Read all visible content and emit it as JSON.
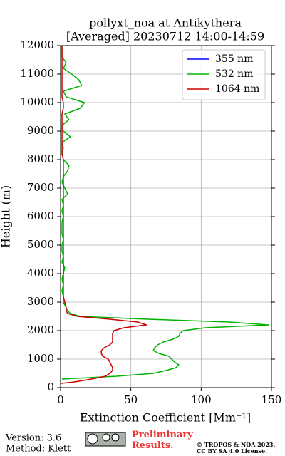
{
  "chart_data": {
    "type": "line",
    "title": "pollyxt_noa at Antikythera",
    "subtitle": "[Averaged] 20230712 14:00-14:59",
    "x_label": "Extinction Coefficient [Mm⁻¹]",
    "y_label": "Height (m)",
    "xlim": [
      0,
      150
    ],
    "xticks": [
      0,
      50,
      100,
      150
    ],
    "ylim": [
      0,
      12000
    ],
    "yticks": [
      0,
      1000,
      2000,
      3000,
      4000,
      5000,
      6000,
      7000,
      8000,
      9000,
      10000,
      11000,
      12000
    ],
    "grid": true,
    "legend": "upper right",
    "y": [
      150,
      200,
      300,
      400,
      500,
      600,
      700,
      800,
      900,
      1000,
      1100,
      1200,
      1300,
      1400,
      1500,
      1600,
      1700,
      1800,
      1900,
      2000,
      2100,
      2200,
      2300,
      2400,
      2500,
      2600,
      2700,
      2800,
      3000,
      3200,
      3400,
      3600,
      3800,
      4000,
      4200,
      4400,
      4600,
      4800,
      5000,
      5200,
      5400,
      5600,
      5800,
      6000,
      6200,
      6400,
      6600,
      6800,
      7000,
      7200,
      7400,
      7600,
      7800,
      8000,
      8200,
      8400,
      8600,
      8800,
      9000,
      9200,
      9400,
      9600,
      9800,
      10000,
      10200,
      10400,
      10600,
      10800,
      11000,
      11200,
      11400,
      11600,
      11800,
      12000
    ],
    "series": [
      {
        "name": "355 nm",
        "color": "#0000ff",
        "values": [
          null,
          null,
          null,
          null,
          null,
          null,
          null,
          null,
          null,
          null,
          null,
          null,
          null,
          null,
          null,
          null,
          null,
          null,
          null,
          null,
          null,
          null,
          null,
          null,
          null,
          null,
          null,
          null,
          null,
          null,
          null,
          null,
          null,
          null,
          null,
          null,
          null,
          null,
          null,
          null,
          null,
          null,
          null,
          null,
          null,
          null,
          null,
          null,
          null,
          null,
          null,
          null,
          null,
          null,
          null,
          null,
          null,
          null,
          null,
          null,
          null,
          null,
          null,
          null,
          null,
          null,
          null,
          null,
          null,
          null,
          null,
          null,
          null,
          null
        ]
      },
      {
        "name": "532 nm",
        "color": "#00b300",
        "values": [
          null,
          null,
          1,
          40,
          66,
          75,
          82,
          84,
          81,
          79,
          77,
          70,
          66,
          67,
          69,
          73,
          80,
          84,
          85,
          87,
          103,
          148,
          120,
          62,
          14,
          7,
          5,
          4,
          2,
          2,
          1,
          2,
          1,
          2,
          3,
          1,
          2,
          1,
          1,
          2,
          1,
          1,
          1,
          2,
          1,
          2,
          1,
          5,
          3,
          1,
          2,
          5,
          6,
          2,
          1,
          2,
          1,
          7,
          2,
          1,
          6,
          3,
          14,
          17,
          4,
          2,
          15,
          13,
          8,
          2,
          4,
          1,
          1,
          1
        ]
      },
      {
        "name": "1064 nm",
        "color": "#cc0000",
        "values": [
          0.5,
          10,
          22,
          32,
          35,
          37,
          37,
          36,
          35,
          34,
          30,
          29,
          29,
          31,
          35,
          37,
          37,
          37,
          37,
          38,
          45,
          61,
          55,
          35,
          12,
          5,
          4,
          4,
          3,
          2,
          2,
          2,
          2,
          2,
          2,
          2,
          2,
          2,
          2,
          2,
          2,
          2,
          2,
          2,
          2,
          2,
          2,
          2,
          2,
          2,
          2,
          2,
          2,
          2,
          1,
          1,
          1,
          1,
          1,
          1,
          1,
          1,
          2,
          2,
          1,
          1,
          1,
          1,
          1,
          1,
          1,
          1,
          1,
          1
        ]
      }
    ]
  },
  "footer": {
    "version": "Version: 3.6",
    "method": "Method: Klett",
    "notice": "Preliminary Results.",
    "copyright": "© TROPOS & NOA 2023.",
    "license": "CC BY SA 4.0 License."
  }
}
